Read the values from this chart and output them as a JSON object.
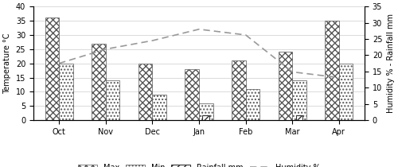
{
  "months": [
    "Oct",
    "Nov",
    "Dec",
    "Jan",
    "Feb",
    "Mar",
    "Apr"
  ],
  "max_temp": [
    36,
    27,
    20,
    18,
    21,
    24,
    35
  ],
  "min_temp": [
    20,
    14,
    9,
    6,
    11,
    14,
    20
  ],
  "rainfall_mm": [
    0,
    0,
    0,
    1.5,
    0,
    1.5,
    0
  ],
  "humidity": [
    20,
    25,
    28,
    32,
    30,
    17,
    15
  ],
  "left_ylim": [
    0,
    40
  ],
  "left_yticks": [
    0,
    5,
    10,
    15,
    20,
    25,
    30,
    35,
    40
  ],
  "right_ylim": [
    0,
    35
  ],
  "right_yticks": [
    0,
    5,
    10,
    15,
    20,
    25,
    30,
    35
  ],
  "ylabel_left": "Temperature °C",
  "ylabel_right": "Humidity % - Rainfall mm",
  "bar_width": 0.3,
  "bar_color": "white",
  "bar_edgecolor": "#555555",
  "line_color": "#999999",
  "legend_fontsize": 7,
  "axis_fontsize": 7,
  "tick_fontsize": 7,
  "fig_width": 5.0,
  "fig_height": 2.1,
  "dpi": 100
}
